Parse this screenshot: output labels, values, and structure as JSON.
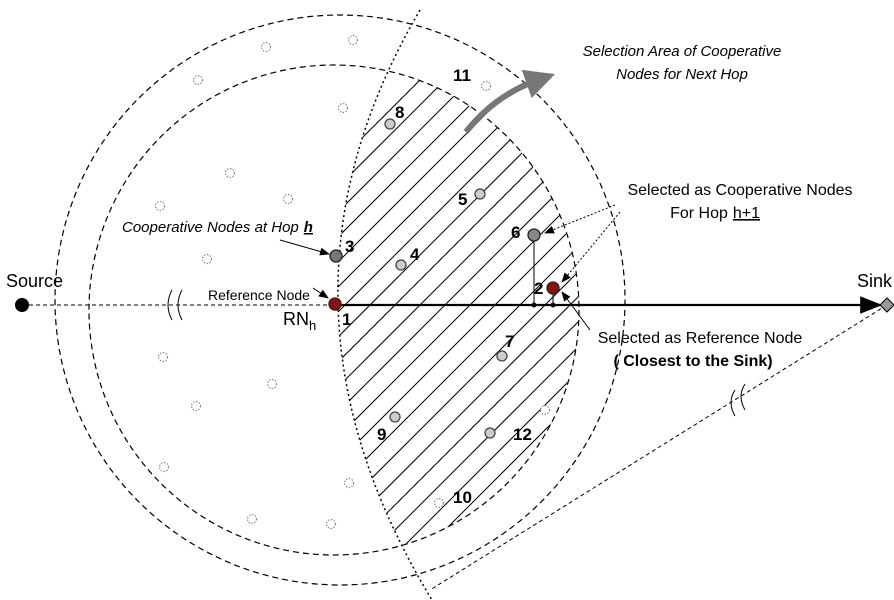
{
  "source": "Source",
  "sink": "Sink",
  "selection_area": [
    "Selection Area of Cooperative",
    "Nodes for Next Hop"
  ],
  "selected_cooperative": {
    "line1": "Selected as Cooperative Nodes",
    "line2": "For Hop",
    "hop": "h+1"
  },
  "cooperative_at_hop": {
    "text": "Cooperative Nodes at Hop",
    "hop": "h"
  },
  "reference_node": "Reference Node",
  "rn": {
    "text": "RN",
    "sub": "h"
  },
  "selected_reference": [
    "Selected as Reference Node",
    "( Closest to the Sink)"
  ],
  "nodes": [
    {
      "label": "1"
    },
    {
      "label": "2"
    },
    {
      "label": "3"
    },
    {
      "label": "4"
    },
    {
      "label": "5"
    },
    {
      "label": "6"
    },
    {
      "label": "7"
    },
    {
      "label": "8"
    },
    {
      "label": "9"
    },
    {
      "label": "10"
    },
    {
      "label": "11"
    },
    {
      "label": "12"
    }
  ]
}
